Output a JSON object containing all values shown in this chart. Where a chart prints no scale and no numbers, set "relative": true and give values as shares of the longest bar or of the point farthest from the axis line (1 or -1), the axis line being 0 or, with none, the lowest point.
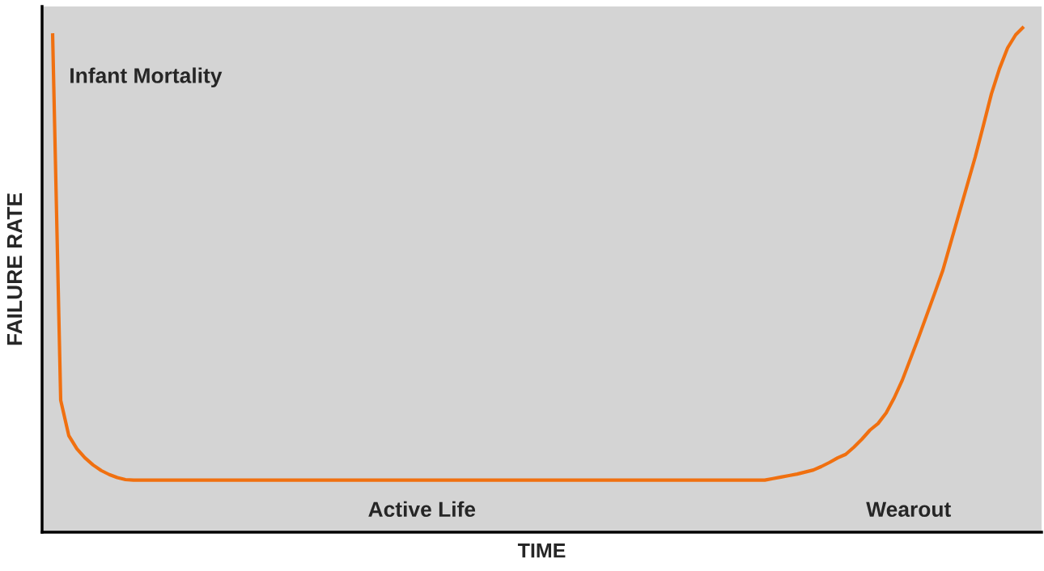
{
  "chart_data": {
    "type": "line",
    "relative": true,
    "xlabel": "TIME",
    "ylabel": "FAILURE RATE",
    "annotations": [
      "Infant Mortality",
      "Active Life",
      "Wearout"
    ],
    "categories": [
      null,
      null,
      null,
      null,
      null,
      null,
      null,
      null,
      null,
      null,
      null,
      null,
      null,
      null,
      null,
      null,
      null,
      null,
      null,
      null,
      null,
      null,
      null,
      null,
      null,
      null,
      null,
      null,
      null,
      null,
      null,
      null,
      null,
      null,
      null,
      null,
      null,
      null,
      null,
      null,
      null,
      null,
      null,
      null,
      null,
      null,
      null,
      null,
      null,
      null,
      null,
      null,
      null,
      null,
      null,
      null,
      null,
      null,
      null,
      null,
      null,
      null,
      null,
      null,
      null,
      null,
      null,
      null,
      null,
      null,
      null,
      null,
      null,
      null,
      null,
      null,
      null,
      null,
      null,
      null,
      null,
      null,
      null,
      null,
      null,
      null,
      null,
      null,
      null,
      null,
      null,
      null,
      null,
      null,
      null,
      null,
      null,
      null,
      null,
      null,
      null,
      null,
      null,
      null,
      null,
      null,
      null,
      null,
      null,
      null,
      null,
      null,
      null,
      null,
      null,
      null,
      null,
      null,
      null,
      null,
      null
    ],
    "series": [
      {
        "color": "#f07010",
        "values": [
          0.987,
          0.261,
          0.191,
          0.165,
          0.147,
          0.133,
          0.122,
          0.114,
          0.108,
          0.104,
          0.103,
          0.103,
          0.103,
          0.103,
          0.103,
          0.103,
          0.103,
          0.103,
          0.103,
          0.103,
          0.103,
          0.103,
          0.103,
          0.103,
          0.103,
          0.103,
          0.103,
          0.103,
          0.103,
          0.103,
          0.103,
          0.103,
          0.103,
          0.103,
          0.103,
          0.103,
          0.103,
          0.103,
          0.103,
          0.103,
          0.103,
          0.103,
          0.103,
          0.103,
          0.103,
          0.103,
          0.103,
          0.103,
          0.103,
          0.103,
          0.103,
          0.103,
          0.103,
          0.103,
          0.103,
          0.103,
          0.103,
          0.103,
          0.103,
          0.103,
          0.103,
          0.103,
          0.103,
          0.103,
          0.103,
          0.103,
          0.103,
          0.103,
          0.103,
          0.103,
          0.103,
          0.103,
          0.103,
          0.103,
          0.103,
          0.103,
          0.103,
          0.103,
          0.103,
          0.103,
          0.103,
          0.103,
          0.103,
          0.103,
          0.103,
          0.103,
          0.103,
          0.103,
          0.103,
          0.106,
          0.109,
          0.112,
          0.115,
          0.119,
          0.123,
          0.13,
          0.138,
          0.147,
          0.154,
          0.168,
          0.184,
          0.202,
          0.215,
          0.236,
          0.266,
          0.301,
          0.343,
          0.385,
          0.429,
          0.473,
          0.518,
          0.574,
          0.63,
          0.686,
          0.742,
          0.804,
          0.867,
          0.917,
          0.958,
          0.984,
          1
        ]
      }
    ],
    "marker": "none"
  }
}
